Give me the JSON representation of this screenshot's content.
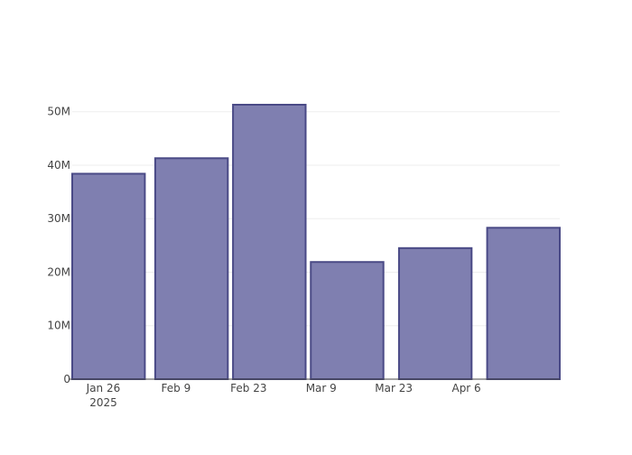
{
  "colors": {
    "bar_fill": "#7f7fb0",
    "bar_stroke": "#4a4a86",
    "grid": "#eeeeee",
    "axis": "#444444",
    "text": "#444444",
    "background": "#ffffff"
  },
  "chart_data": {
    "type": "bar",
    "title": "",
    "xlabel": "",
    "ylabel": "",
    "x_axis_type": "date",
    "bars": [
      {
        "start": "2025-01-20",
        "end": "2025-02-03",
        "value": 38400000
      },
      {
        "start": "2025-02-05",
        "end": "2025-02-19",
        "value": 41300000
      },
      {
        "start": "2025-02-20",
        "end": "2025-03-06",
        "value": 51300000
      },
      {
        "start": "2025-03-07",
        "end": "2025-03-21",
        "value": 21900000
      },
      {
        "start": "2025-03-24",
        "end": "2025-04-07",
        "value": 24500000
      },
      {
        "start": "2025-04-10",
        "end": "2025-04-24",
        "value": 28300000
      }
    ],
    "x_ticks": [
      {
        "date": "2025-01-26",
        "label": "Jan 26",
        "sublabel": "2025"
      },
      {
        "date": "2025-02-09",
        "label": "Feb 9",
        "sublabel": ""
      },
      {
        "date": "2025-02-23",
        "label": "Feb 23",
        "sublabel": ""
      },
      {
        "date": "2025-03-09",
        "label": "Mar 9",
        "sublabel": ""
      },
      {
        "date": "2025-03-23",
        "label": "Mar 23",
        "sublabel": ""
      },
      {
        "date": "2025-04-06",
        "label": "Apr 6",
        "sublabel": ""
      }
    ],
    "xlim": [
      "2025-01-20",
      "2025-04-24"
    ],
    "y_ticks": [
      {
        "value": 0,
        "label": "0"
      },
      {
        "value": 10000000,
        "label": "10M"
      },
      {
        "value": 20000000,
        "label": "20M"
      },
      {
        "value": 30000000,
        "label": "30M"
      },
      {
        "value": 40000000,
        "label": "40M"
      },
      {
        "value": 50000000,
        "label": "50M"
      }
    ],
    "ylim": [
      0,
      54000000
    ],
    "grid": true,
    "legend": "none"
  }
}
